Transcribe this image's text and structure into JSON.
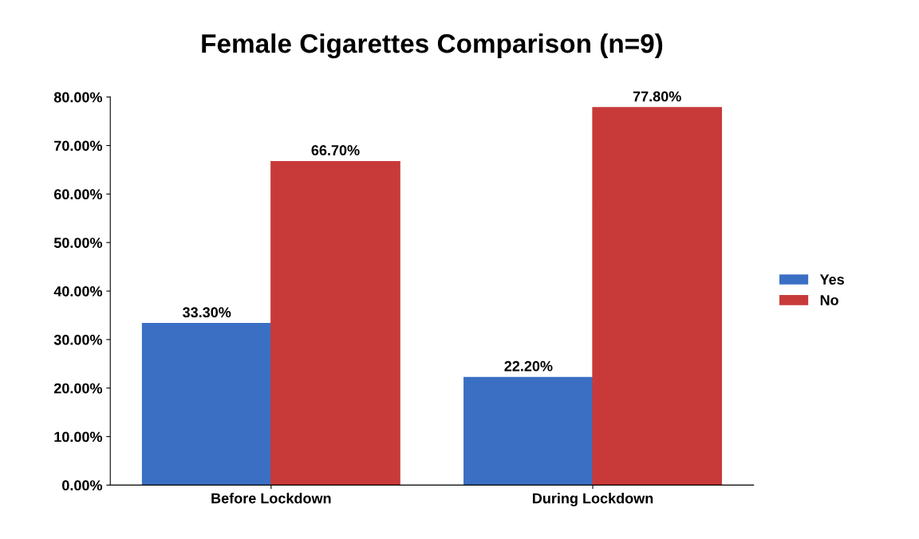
{
  "chart_data": {
    "type": "bar",
    "title": "Female Cigarettes Comparison (n=9)",
    "categories": [
      "Before Lockdown",
      "During Lockdown"
    ],
    "series": [
      {
        "name": "Yes",
        "color": "#3a6fc4",
        "values": [
          33.3,
          22.2
        ],
        "value_labels": [
          "33.30%",
          "22.20%"
        ]
      },
      {
        "name": "No",
        "color": "#c83a3a",
        "values": [
          66.7,
          77.8
        ],
        "value_labels": [
          "66.70%",
          "77.80%"
        ]
      }
    ],
    "ylim": [
      0,
      80
    ],
    "yticks": [
      {
        "value": 0,
        "label": "0.00%"
      },
      {
        "value": 10,
        "label": "10.00%"
      },
      {
        "value": 20,
        "label": "20.00%"
      },
      {
        "value": 30,
        "label": "30.00%"
      },
      {
        "value": 40,
        "label": "40.00%"
      },
      {
        "value": 50,
        "label": "50.00%"
      },
      {
        "value": 60,
        "label": "60.00%"
      },
      {
        "value": 70,
        "label": "70.00%"
      },
      {
        "value": 80,
        "label": "80.00%"
      }
    ],
    "grid": false,
    "legend": "right"
  }
}
